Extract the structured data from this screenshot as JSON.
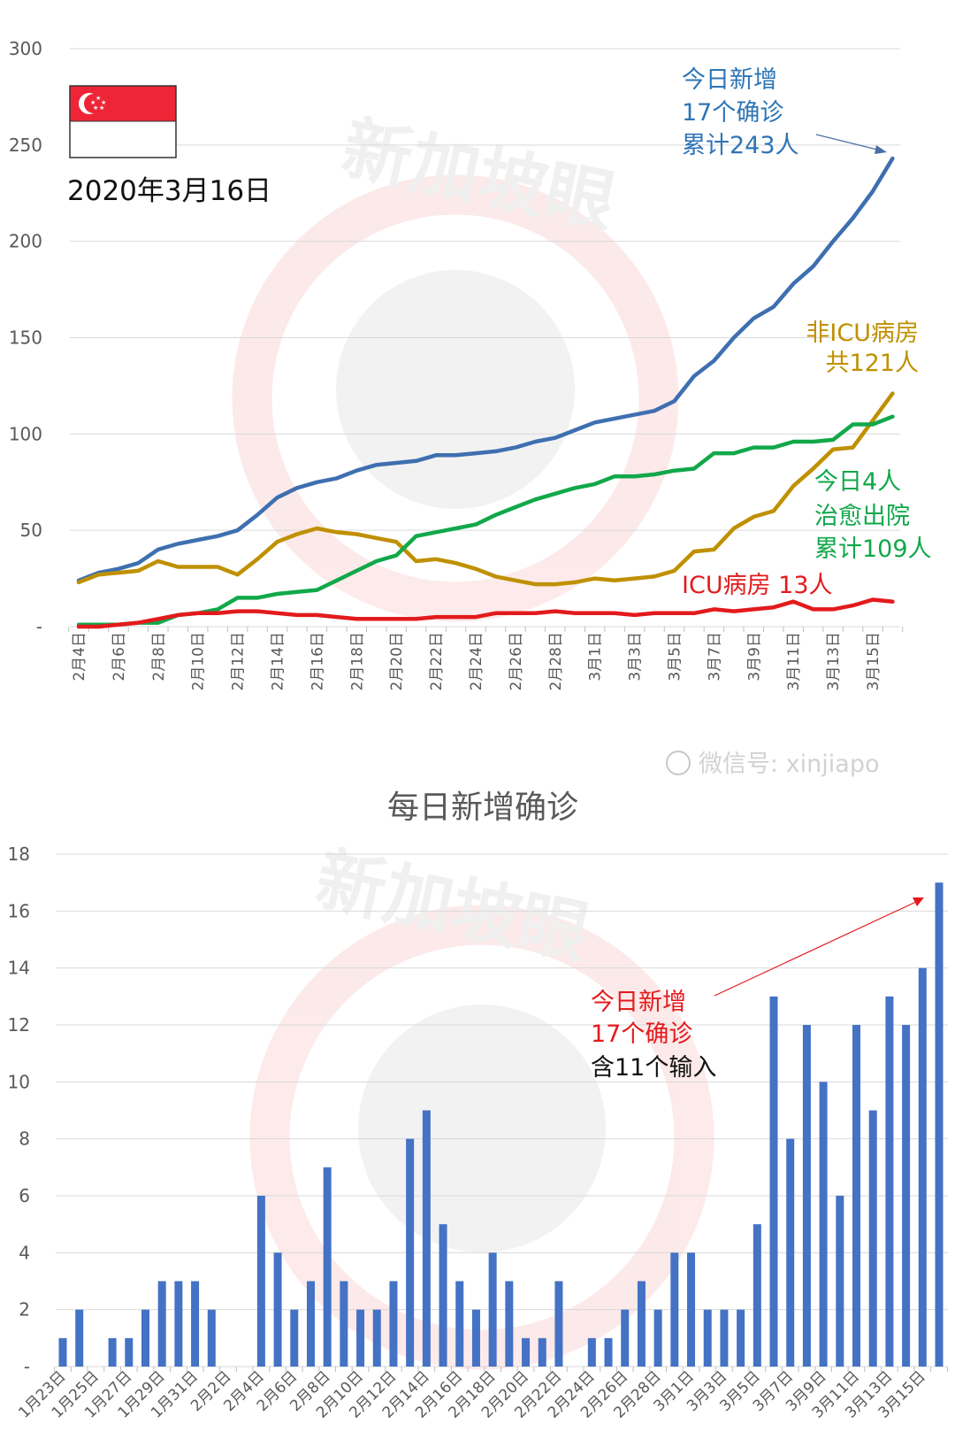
{
  "colors": {
    "total": "#3e6fb0",
    "non_icu": "#bf9000",
    "recovered": "#11a84a",
    "icu": "#e31a1c",
    "bars": "#4472c4",
    "annotation_red": "#e31a1c"
  },
  "flag_date": "2020年3月16日",
  "watermark": {
    "brand": "新加坡眼",
    "wechat": "微信号: xinjiapo"
  },
  "chart_data": [
    {
      "type": "line",
      "title": "",
      "ylim": [
        0,
        300
      ],
      "yticks": [
        "-",
        "50",
        "100",
        "150",
        "200",
        "250",
        "300"
      ],
      "ytick_values": [
        0,
        50,
        100,
        150,
        200,
        250,
        300
      ],
      "grid": true,
      "x": [
        "2月4日",
        "2月5日",
        "2月6日",
        "2月7日",
        "2月8日",
        "2月9日",
        "2月10日",
        "2月11日",
        "2月12日",
        "2月13日",
        "2月14日",
        "2月15日",
        "2月16日",
        "2月17日",
        "2月18日",
        "2月19日",
        "2月20日",
        "2月21日",
        "2月22日",
        "2月23日",
        "2月24日",
        "2月25日",
        "2月26日",
        "2月27日",
        "2月28日",
        "2月29日",
        "3月1日",
        "3月2日",
        "3月3日",
        "3月4日",
        "3月5日",
        "3月6日",
        "3月7日",
        "3月8日",
        "3月9日",
        "3月10日",
        "3月11日",
        "3月12日",
        "3月13日",
        "3月14日",
        "3月15日",
        "3月16日"
      ],
      "xtick_labels": [
        "2月4日",
        "2月6日",
        "2月8日",
        "2月10日",
        "2月12日",
        "2月14日",
        "2月16日",
        "2月18日",
        "2月20日",
        "2月22日",
        "2月24日",
        "2月26日",
        "2月28日",
        "3月1日",
        "3月3日",
        "3月5日",
        "3月7日",
        "3月9日",
        "3月11日",
        "3月13日",
        "3月15日"
      ],
      "series": [
        {
          "name": "累计确诊",
          "color_key": "total",
          "values": [
            24,
            28,
            30,
            33,
            40,
            43,
            45,
            47,
            50,
            58,
            67,
            72,
            75,
            77,
            81,
            84,
            85,
            86,
            89,
            89,
            90,
            91,
            93,
            96,
            98,
            102,
            106,
            108,
            110,
            112,
            117,
            130,
            138,
            150,
            160,
            166,
            178,
            187,
            200,
            212,
            226,
            243
          ]
        },
        {
          "name": "非ICU病房",
          "color_key": "non_icu",
          "values": [
            23,
            27,
            28,
            29,
            34,
            31,
            31,
            31,
            27,
            35,
            44,
            48,
            51,
            49,
            48,
            46,
            44,
            34,
            35,
            33,
            30,
            26,
            24,
            22,
            22,
            23,
            25,
            24,
            25,
            26,
            29,
            39,
            40,
            51,
            57,
            60,
            73,
            82,
            92,
            93,
            107,
            121
          ]
        },
        {
          "name": "治愈出院",
          "color_key": "recovered",
          "values": [
            1,
            1,
            1,
            2,
            2,
            6,
            7,
            9,
            15,
            15,
            17,
            18,
            19,
            24,
            29,
            34,
            37,
            47,
            49,
            51,
            53,
            58,
            62,
            66,
            69,
            72,
            74,
            78,
            78,
            79,
            81,
            82,
            90,
            90,
            93,
            93,
            96,
            96,
            97,
            105,
            105,
            109
          ]
        },
        {
          "name": "ICU病房",
          "color_key": "icu",
          "values": [
            0,
            0,
            1,
            2,
            4,
            6,
            7,
            7,
            8,
            8,
            7,
            6,
            6,
            5,
            4,
            4,
            4,
            4,
            5,
            5,
            5,
            7,
            7,
            7,
            8,
            7,
            7,
            7,
            6,
            7,
            7,
            7,
            9,
            8,
            9,
            10,
            13,
            9,
            9,
            11,
            14,
            13
          ]
        }
      ],
      "annotations": {
        "total": [
          "今日新增",
          "17个确诊",
          "累计243人"
        ],
        "non_icu": [
          "非ICU病房",
          "共121人"
        ],
        "recovered": [
          "今日4人",
          "治愈出院",
          "累计109人"
        ],
        "icu": "ICU病房 13人"
      }
    },
    {
      "type": "bar",
      "title": "每日新增确诊",
      "ylim": [
        0,
        18
      ],
      "yticks": [
        "-",
        "2",
        "4",
        "6",
        "8",
        "10",
        "12",
        "14",
        "16",
        "18"
      ],
      "ytick_values": [
        0,
        2,
        4,
        6,
        8,
        10,
        12,
        14,
        16,
        18
      ],
      "grid": true,
      "categories_start": "1月23日",
      "categories_end": "3月16日",
      "values": [
        1,
        2,
        0,
        1,
        1,
        2,
        3,
        3,
        3,
        2,
        0,
        0,
        6,
        4,
        2,
        3,
        7,
        3,
        2,
        2,
        3,
        8,
        9,
        5,
        3,
        2,
        4,
        3,
        1,
        1,
        3,
        0,
        1,
        1,
        2,
        3,
        2,
        4,
        4,
        2,
        2,
        2,
        5,
        13,
        8,
        12,
        10,
        6,
        12,
        9,
        13,
        12,
        14,
        17
      ],
      "xtick_labels": [
        "1月23日",
        "1月25日",
        "1月27日",
        "1月29日",
        "1月31日",
        "2月2日",
        "2月4日",
        "2月6日",
        "2月8日",
        "2月10日",
        "2月12日",
        "2月14日",
        "2月16日",
        "2月18日",
        "2月20日",
        "2月22日",
        "2月24日",
        "2月26日",
        "2月28日",
        "3月1日",
        "3月3日",
        "3月5日",
        "3月7日",
        "3月9日",
        "3月11日",
        "3月13日",
        "3月15日"
      ],
      "annotation": {
        "line1": "今日新增",
        "line2": "17个确诊",
        "line3": "含11个输入"
      }
    }
  ]
}
